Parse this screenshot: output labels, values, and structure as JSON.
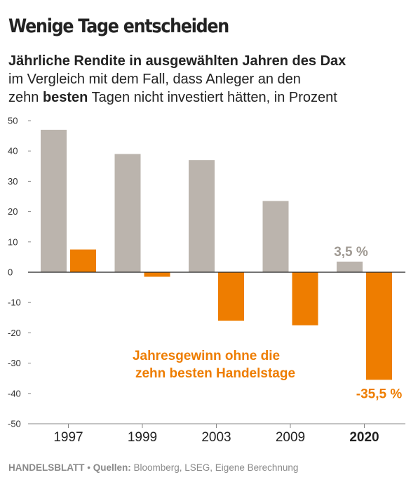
{
  "header": {
    "title": "Wenige Tage entscheiden",
    "subtitle_line1": "Jährliche Rendite in ausgewählten Jahren des Dax",
    "subtitle_line2": "im Vergleich mit dem Fall, dass Anleger an den",
    "subtitle_line3_pre": "zehn ",
    "subtitle_line3_bold": "besten",
    "subtitle_line3_post": " Tagen nicht investiert hätten, in Prozent"
  },
  "chart_data": {
    "type": "bar",
    "categories": [
      "1997",
      "1999",
      "2003",
      "2009",
      "2020"
    ],
    "highlight_category": "2020",
    "series": [
      {
        "values": [
          47,
          39,
          37,
          23.5,
          3.5
        ],
        "color": "#bbb4ad"
      },
      {
        "name": "Jahresgewinn ohne die zehn besten Handelstage",
        "values": [
          7.5,
          -1.5,
          -16,
          -17.5,
          -35.5
        ],
        "color": "#ee7d00"
      }
    ],
    "y_ticks": [
      50,
      40,
      30,
      20,
      10,
      0,
      -10,
      -20,
      -30,
      -40,
      -50
    ],
    "ylim": [
      -50,
      50
    ],
    "grid": false,
    "annotations": [
      {
        "text": "3,5 %",
        "series": 0,
        "category": "2020",
        "color": "#a09a93"
      },
      {
        "text": "-35,5 %",
        "series": 1,
        "category": "2020",
        "color": "#ee7d00"
      }
    ],
    "legend_text_line1": "Jahresgewinn ohne die",
    "legend_text_line2": "zehn besten Handelstage",
    "legend_color": "#ee7d00"
  },
  "footer": {
    "brand": "HANDELSBLATT",
    "separator": " • ",
    "source_label": "Quellen:",
    "source_text": " Bloomberg, LSEG, Eigene Berechnung"
  }
}
